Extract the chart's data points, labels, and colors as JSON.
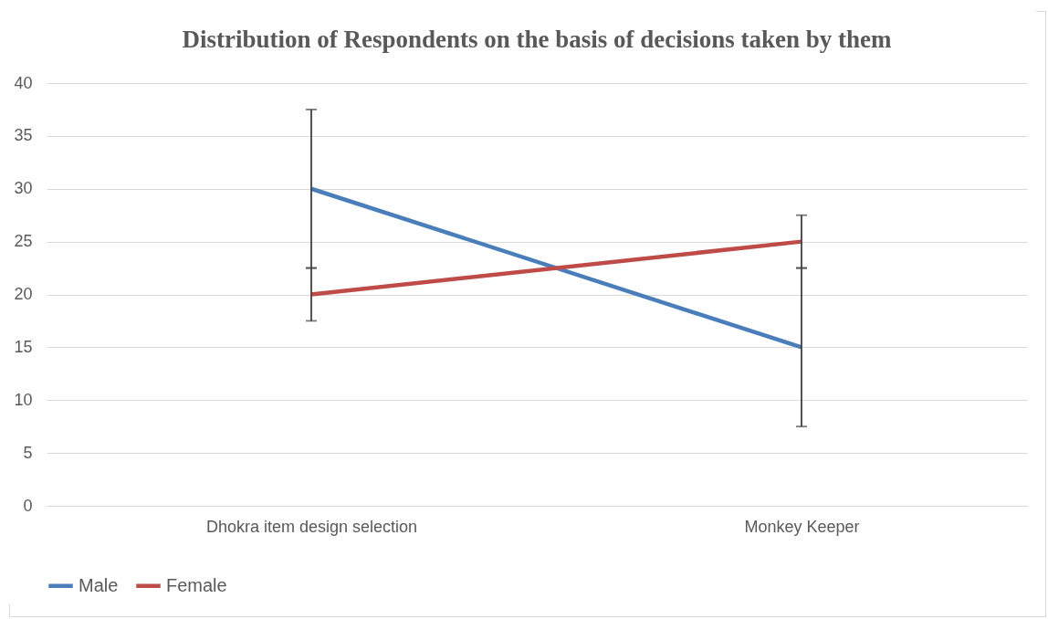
{
  "chart_data": {
    "type": "line",
    "title": "Distribution of Respondents on the basis of decisions taken by them",
    "categories": [
      "Dhokra item design selection",
      "Monkey Keeper"
    ],
    "series": [
      {
        "name": "Male",
        "color": "#4a7ebb",
        "values": [
          30,
          15
        ],
        "errors": [
          7.5,
          7.5
        ]
      },
      {
        "name": "Female",
        "color": "#be4b48",
        "values": [
          20,
          25
        ],
        "errors": [
          2.5,
          2.5
        ]
      }
    ],
    "ylim": [
      0,
      40
    ],
    "yticks": [
      0,
      5,
      10,
      15,
      20,
      25,
      30,
      35,
      40
    ],
    "grid": "y",
    "legend": "bottom",
    "marker": "none",
    "line_style": "solid"
  }
}
